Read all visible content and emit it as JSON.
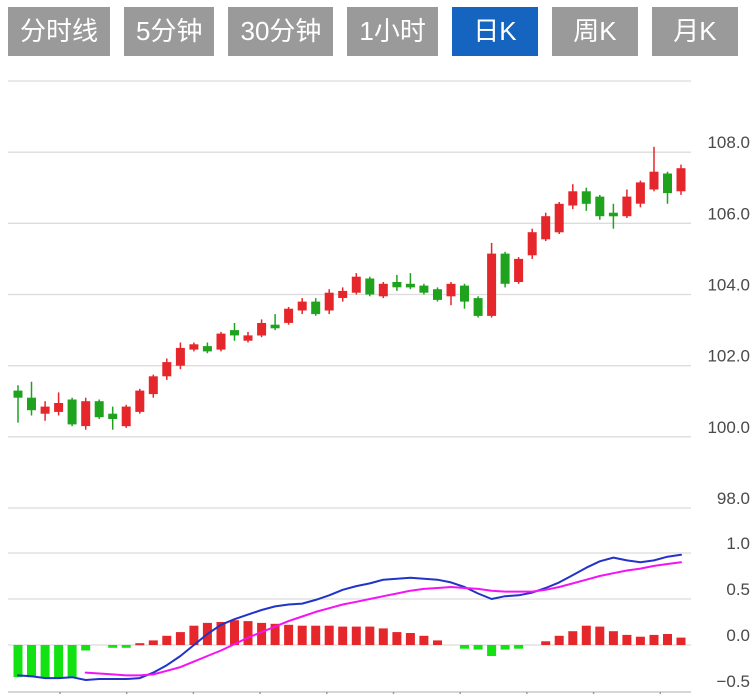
{
  "toolbar": {
    "tabs": [
      {
        "label": "分时线",
        "active": false
      },
      {
        "label": "5分钟",
        "active": false
      },
      {
        "label": "30分钟",
        "active": false
      },
      {
        "label": "1小时",
        "active": false
      },
      {
        "label": "日K",
        "active": true
      },
      {
        "label": "周K",
        "active": false
      },
      {
        "label": "月K",
        "active": false
      }
    ]
  },
  "colors": {
    "tab_active_bg": "#1565c0",
    "tab_inactive_bg": "#9a9a9a",
    "tab_text": "#ffffff",
    "up": "#e5262b",
    "down": "#1fa31f",
    "hist_up": "#e5262b",
    "hist_down": "#12e212",
    "dif_line": "#2233c8",
    "dea_line": "#f512f5",
    "grid": "#dcdcdc",
    "axis_line": "#c9c9c9",
    "tick": "#999999",
    "axis_text": "#4a4a4a",
    "background": "#ffffff"
  },
  "chart_data": {
    "type": "candlestick",
    "title": "",
    "legend_position": "none",
    "grid": true,
    "price_panel": {
      "ylim": [
        98,
        110
      ],
      "gridline_values": [
        110,
        108,
        106,
        104,
        102,
        100,
        98
      ],
      "tick_labels": [
        {
          "value": 108,
          "label": "108.0"
        },
        {
          "value": 106,
          "label": "106.0"
        },
        {
          "value": 104,
          "label": "104.0"
        },
        {
          "value": 102,
          "label": "102.0"
        },
        {
          "value": 100,
          "label": "100.0"
        },
        {
          "value": 98,
          "label": "98.0"
        }
      ],
      "candles_ohlc": [
        [
          101.3,
          101.45,
          100.4,
          101.1
        ],
        [
          101.1,
          101.55,
          100.6,
          100.75
        ],
        [
          100.65,
          101.0,
          100.45,
          100.85
        ],
        [
          100.7,
          101.25,
          100.6,
          100.95
        ],
        [
          101.05,
          101.1,
          100.3,
          100.35
        ],
        [
          100.3,
          101.1,
          100.2,
          101.0
        ],
        [
          101.0,
          101.05,
          100.5,
          100.55
        ],
        [
          100.65,
          100.85,
          100.2,
          100.5
        ],
        [
          100.3,
          100.9,
          100.25,
          100.85
        ],
        [
          100.7,
          101.35,
          100.65,
          101.3
        ],
        [
          101.2,
          101.75,
          101.1,
          101.7
        ],
        [
          101.7,
          102.2,
          101.6,
          102.1
        ],
        [
          102.0,
          102.65,
          101.9,
          102.5
        ],
        [
          102.45,
          102.65,
          102.4,
          102.6
        ],
        [
          102.55,
          102.65,
          102.35,
          102.4
        ],
        [
          102.45,
          102.95,
          102.4,
          102.9
        ],
        [
          103.0,
          103.2,
          102.7,
          102.85
        ],
        [
          102.7,
          102.95,
          102.65,
          102.85
        ],
        [
          102.85,
          103.3,
          102.8,
          103.2
        ],
        [
          103.15,
          103.45,
          103.0,
          103.05
        ],
        [
          103.2,
          103.65,
          103.15,
          103.6
        ],
        [
          103.55,
          103.9,
          103.45,
          103.8
        ],
        [
          103.8,
          103.9,
          103.4,
          103.45
        ],
        [
          103.55,
          104.15,
          103.45,
          104.05
        ],
        [
          103.9,
          104.2,
          103.8,
          104.1
        ],
        [
          104.05,
          104.6,
          104.0,
          104.5
        ],
        [
          104.45,
          104.5,
          103.95,
          104.0
        ],
        [
          103.95,
          104.35,
          103.9,
          104.3
        ],
        [
          104.35,
          104.55,
          104.1,
          104.2
        ],
        [
          104.3,
          104.6,
          104.15,
          104.2
        ],
        [
          104.25,
          104.3,
          104.0,
          104.05
        ],
        [
          104.15,
          104.2,
          103.8,
          103.85
        ],
        [
          103.95,
          104.35,
          103.7,
          104.3
        ],
        [
          104.25,
          104.3,
          103.6,
          103.8
        ],
        [
          103.9,
          103.95,
          103.35,
          103.4
        ],
        [
          103.4,
          105.45,
          103.35,
          105.15
        ],
        [
          105.15,
          105.2,
          104.2,
          104.3
        ],
        [
          104.35,
          105.05,
          104.3,
          105.0
        ],
        [
          105.1,
          105.85,
          105.0,
          105.75
        ],
        [
          105.55,
          106.3,
          105.5,
          106.2
        ],
        [
          105.75,
          106.6,
          105.7,
          106.55
        ],
        [
          106.5,
          107.1,
          106.4,
          106.9
        ],
        [
          106.9,
          107.0,
          106.35,
          106.55
        ],
        [
          106.75,
          106.8,
          106.1,
          106.2
        ],
        [
          106.3,
          106.55,
          105.85,
          106.2
        ],
        [
          106.2,
          106.95,
          106.15,
          106.75
        ],
        [
          106.55,
          107.2,
          106.45,
          107.15
        ],
        [
          106.95,
          108.15,
          106.9,
          107.45
        ],
        [
          107.4,
          107.45,
          106.55,
          106.85
        ],
        [
          106.9,
          107.65,
          106.8,
          107.55
        ]
      ]
    },
    "macd_panel": {
      "ylim": [
        -0.5,
        1.0
      ],
      "gridline_values": [
        1.0,
        0.5,
        0.0
      ],
      "tick_labels": [
        {
          "value": 1.0,
          "label": "1.0"
        },
        {
          "value": 0.5,
          "label": "0.5"
        },
        {
          "value": 0.0,
          "label": "0.0"
        },
        {
          "value": -0.5,
          "label": "-0.5"
        }
      ],
      "histogram": [
        -0.35,
        -0.35,
        -0.36,
        -0.36,
        -0.35,
        -0.06,
        0,
        -0.03,
        -0.03,
        0.02,
        0.05,
        0.1,
        0.14,
        0.21,
        0.24,
        0.25,
        0.27,
        0.26,
        0.24,
        0.23,
        0.22,
        0.21,
        0.21,
        0.21,
        0.2,
        0.2,
        0.2,
        0.18,
        0.14,
        0.13,
        0.1,
        0.05,
        0,
        -0.04,
        -0.05,
        -0.12,
        -0.05,
        -0.04,
        0,
        0.04,
        0.1,
        0.15,
        0.21,
        0.2,
        0.15,
        0.11,
        0.09,
        0.11,
        0.12,
        0.08
      ],
      "dif": [
        -0.33,
        -0.34,
        -0.36,
        -0.36,
        -0.35,
        -0.38,
        -0.37,
        -0.37,
        -0.37,
        -0.36,
        -0.3,
        -0.22,
        -0.12,
        0.0,
        0.12,
        0.22,
        0.28,
        0.33,
        0.38,
        0.42,
        0.44,
        0.45,
        0.49,
        0.54,
        0.6,
        0.64,
        0.67,
        0.71,
        0.72,
        0.73,
        0.72,
        0.71,
        0.68,
        0.63,
        0.56,
        0.5,
        0.53,
        0.54,
        0.57,
        0.62,
        0.68,
        0.76,
        0.84,
        0.91,
        0.95,
        0.92,
        0.9,
        0.92,
        0.96,
        0.98
      ],
      "dea": [
        null,
        null,
        null,
        null,
        null,
        -0.3,
        -0.31,
        -0.32,
        -0.33,
        -0.33,
        -0.32,
        -0.28,
        -0.24,
        -0.18,
        -0.12,
        -0.06,
        0.01,
        0.08,
        0.14,
        0.2,
        0.26,
        0.31,
        0.36,
        0.4,
        0.44,
        0.47,
        0.5,
        0.53,
        0.56,
        0.59,
        0.61,
        0.62,
        0.63,
        0.62,
        0.61,
        0.59,
        0.58,
        0.58,
        0.58,
        0.6,
        0.63,
        0.67,
        0.71,
        0.75,
        0.78,
        0.81,
        0.83,
        0.86,
        0.88,
        0.9
      ]
    },
    "x_axis": {
      "tick_count": 10,
      "tick_labels": []
    }
  }
}
